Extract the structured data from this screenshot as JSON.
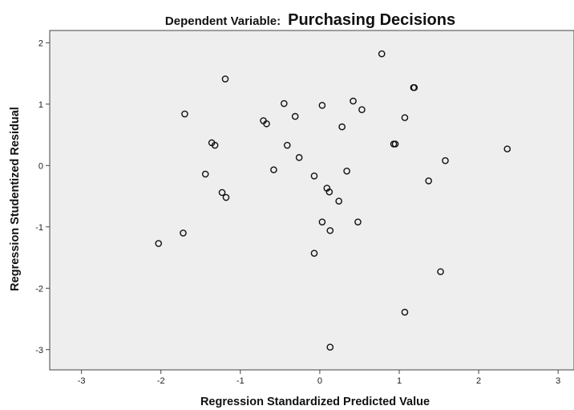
{
  "chart_data": {
    "type": "scatter",
    "title_prefix": "Dependent Variable:",
    "title_main": "Purchasing Decisions",
    "xlabel": "Regression Standardized Predicted Value",
    "ylabel": "Regression Studentized Residual",
    "xlim": [
      -3.4,
      3.2
    ],
    "ylim": [
      -3.33,
      2.2
    ],
    "xticks": [
      -3,
      -2,
      -1,
      0,
      1,
      2,
      3
    ],
    "yticks": [
      2,
      1,
      0,
      -1,
      -2,
      -3
    ],
    "xtick_labels": [
      "-3",
      "-2",
      "-1",
      "0",
      "1",
      "2",
      "3"
    ],
    "ytick_labels": [
      "2",
      "1",
      "0",
      "-1",
      "-2",
      "-3"
    ],
    "grid": false,
    "plot_background": "#eeeeee",
    "marker": "open-circle",
    "points": [
      [
        -2.03,
        -1.27
      ],
      [
        -1.72,
        -1.1
      ],
      [
        -1.7,
        0.84
      ],
      [
        -1.44,
        -0.14
      ],
      [
        -1.36,
        0.37
      ],
      [
        -1.32,
        0.33
      ],
      [
        -1.23,
        -0.44
      ],
      [
        -1.18,
        -0.52
      ],
      [
        -1.19,
        1.41
      ],
      [
        -0.71,
        0.73
      ],
      [
        -0.67,
        0.68
      ],
      [
        -0.58,
        -0.07
      ],
      [
        -0.45,
        1.01
      ],
      [
        -0.41,
        0.33
      ],
      [
        -0.31,
        0.8
      ],
      [
        -0.26,
        0.13
      ],
      [
        -0.07,
        -0.17
      ],
      [
        -0.07,
        -1.43
      ],
      [
        0.03,
        -0.92
      ],
      [
        0.03,
        0.98
      ],
      [
        0.09,
        -0.37
      ],
      [
        0.12,
        -0.43
      ],
      [
        0.13,
        -1.06
      ],
      [
        0.13,
        -2.96
      ],
      [
        0.24,
        -0.58
      ],
      [
        0.28,
        0.63
      ],
      [
        0.34,
        -0.09
      ],
      [
        0.42,
        1.05
      ],
      [
        0.48,
        -0.92
      ],
      [
        0.53,
        0.91
      ],
      [
        0.93,
        0.35
      ],
      [
        0.95,
        0.35
      ],
      [
        0.78,
        1.82
      ],
      [
        1.07,
        0.78
      ],
      [
        1.07,
        -2.39
      ],
      [
        1.18,
        1.27
      ],
      [
        1.19,
        1.27
      ],
      [
        1.37,
        -0.25
      ],
      [
        1.52,
        -1.73
      ],
      [
        1.58,
        0.08
      ],
      [
        2.36,
        0.27
      ]
    ]
  }
}
